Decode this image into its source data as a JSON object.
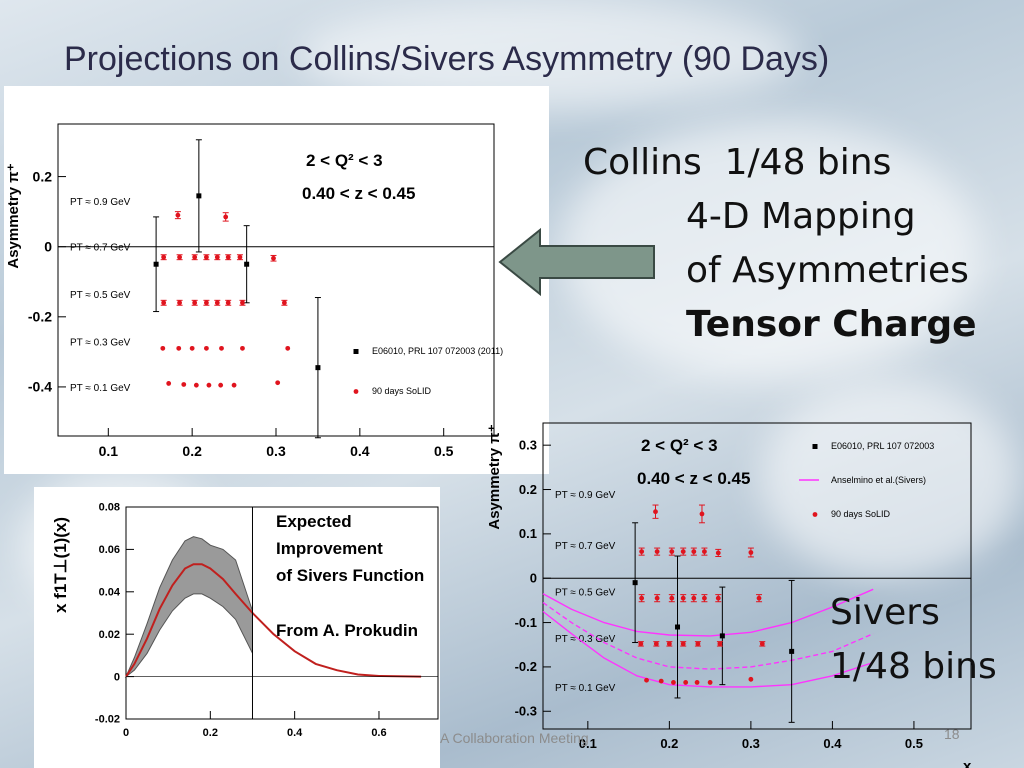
{
  "slide": {
    "title": "Projections on Collins/Sivers Asymmetry (90 Days)",
    "collins_line1": "Collins  1/48 bins",
    "collins_line2": "4-D Mapping",
    "collins_line3": "of Asymmetries",
    "collins_line4": "Tensor Charge",
    "sivers_line1": "Sivers",
    "sivers_line2": "1/48 bins",
    "footer_text": "A Collaboration Meeting",
    "page_number": "18",
    "arrow_color": "#7e968a"
  },
  "chart_data": [
    {
      "type": "scatter",
      "name": "collins",
      "ylabel": "Asymmetry π⁺",
      "xlabel": "",
      "xlim": [
        0.04,
        0.56
      ],
      "ylim": [
        -0.54,
        0.35
      ],
      "xticks": [
        "0.1",
        "0.2",
        "0.3",
        "0.4",
        "0.5"
      ],
      "yticks": [
        "0.2",
        "0",
        "-0.2",
        "-0.4"
      ],
      "annotations": [
        "2 < Q² < 3",
        "0.40 < z < 0.45"
      ],
      "pt_labels": [
        {
          "label": "PT ≈ 0.9 GeV",
          "y": 0.13
        },
        {
          "label": "PT ≈ 0.7 GeV",
          "y": 0.0
        },
        {
          "label": "PT ≈ 0.5 GeV",
          "y": -0.135
        },
        {
          "label": "PT ≈ 0.3 GeV",
          "y": -0.27
        },
        {
          "label": "PT ≈ 0.1 GeV",
          "y": -0.4
        }
      ],
      "legend": [
        {
          "name": "E06010, PRL 107 072003 (2011)",
          "marker": "square",
          "color": "#000000"
        },
        {
          "name": "90 days SoLID",
          "marker": "circle",
          "color": "#e0141e"
        }
      ],
      "series": [
        {
          "name": "E06010",
          "color": "#000000",
          "points": [
            {
              "x": 0.157,
              "y": -0.05,
              "err": 0.135
            },
            {
              "x": 0.208,
              "y": 0.145,
              "err": 0.16
            },
            {
              "x": 0.265,
              "y": -0.05,
              "err": 0.11
            },
            {
              "x": 0.35,
              "y": -0.345,
              "err": 0.2
            }
          ]
        },
        {
          "name": "90 days SoLID",
          "color": "#e0141e",
          "points": [
            {
              "x": 0.183,
              "y": 0.09,
              "err": 0.01
            },
            {
              "x": 0.24,
              "y": 0.085,
              "err": 0.012
            },
            {
              "x": 0.166,
              "y": -0.03,
              "err": 0.007
            },
            {
              "x": 0.185,
              "y": -0.03,
              "err": 0.007
            },
            {
              "x": 0.203,
              "y": -0.03,
              "err": 0.007
            },
            {
              "x": 0.217,
              "y": -0.03,
              "err": 0.007
            },
            {
              "x": 0.23,
              "y": -0.03,
              "err": 0.007
            },
            {
              "x": 0.243,
              "y": -0.03,
              "err": 0.007
            },
            {
              "x": 0.257,
              "y": -0.03,
              "err": 0.007
            },
            {
              "x": 0.297,
              "y": -0.033,
              "err": 0.008
            },
            {
              "x": 0.166,
              "y": -0.16,
              "err": 0.007
            },
            {
              "x": 0.185,
              "y": -0.16,
              "err": 0.007
            },
            {
              "x": 0.203,
              "y": -0.16,
              "err": 0.007
            },
            {
              "x": 0.217,
              "y": -0.16,
              "err": 0.007
            },
            {
              "x": 0.23,
              "y": -0.16,
              "err": 0.007
            },
            {
              "x": 0.243,
              "y": -0.16,
              "err": 0.007
            },
            {
              "x": 0.26,
              "y": -0.16,
              "err": 0.007
            },
            {
              "x": 0.31,
              "y": -0.16,
              "err": 0.007
            },
            {
              "x": 0.165,
              "y": -0.29,
              "err": 0
            },
            {
              "x": 0.184,
              "y": -0.29,
              "err": 0
            },
            {
              "x": 0.2,
              "y": -0.29,
              "err": 0
            },
            {
              "x": 0.217,
              "y": -0.29,
              "err": 0
            },
            {
              "x": 0.235,
              "y": -0.29,
              "err": 0
            },
            {
              "x": 0.26,
              "y": -0.29,
              "err": 0
            },
            {
              "x": 0.314,
              "y": -0.29,
              "err": 0
            },
            {
              "x": 0.172,
              "y": -0.39,
              "err": 0
            },
            {
              "x": 0.19,
              "y": -0.393,
              "err": 0
            },
            {
              "x": 0.205,
              "y": -0.395,
              "err": 0
            },
            {
              "x": 0.22,
              "y": -0.395,
              "err": 0
            },
            {
              "x": 0.234,
              "y": -0.395,
              "err": 0
            },
            {
              "x": 0.25,
              "y": -0.395,
              "err": 0
            },
            {
              "x": 0.302,
              "y": -0.388,
              "err": 0
            }
          ]
        }
      ]
    },
    {
      "type": "area",
      "name": "sivers-function",
      "ylabel": "x f1T⊥(1)(x)",
      "xlabel": "",
      "xlim": [
        0,
        0.74
      ],
      "ylim": [
        -0.02,
        0.08
      ],
      "xticks": [
        "0",
        "0.2",
        "0.4",
        "0.6"
      ],
      "yticks": [
        "0.08",
        "0.06",
        "0.04",
        "0.02",
        "0",
        "-0.02"
      ],
      "annotations": [
        "Expected",
        "Improvement",
        " of Sivers Function",
        "From A. Prokudin"
      ],
      "divider_x": 0.3,
      "series": [
        {
          "name": "central",
          "color": "#c0201e",
          "points": [
            [
              0,
              0
            ],
            [
              0.02,
              0.006
            ],
            [
              0.05,
              0.018
            ],
            [
              0.08,
              0.032
            ],
            [
              0.11,
              0.043
            ],
            [
              0.14,
              0.051
            ],
            [
              0.16,
              0.053
            ],
            [
              0.18,
              0.053
            ],
            [
              0.2,
              0.051
            ],
            [
              0.23,
              0.046
            ],
            [
              0.26,
              0.039
            ],
            [
              0.3,
              0.03
            ],
            [
              0.35,
              0.02
            ],
            [
              0.4,
              0.012
            ],
            [
              0.45,
              0.006
            ],
            [
              0.5,
              0.003
            ],
            [
              0.55,
              0.001
            ],
            [
              0.6,
              0.0003
            ],
            [
              0.7,
              0
            ]
          ]
        },
        {
          "name": "upper",
          "color": "#7a7a7a",
          "points": [
            [
              0,
              0
            ],
            [
              0.02,
              0.009
            ],
            [
              0.05,
              0.025
            ],
            [
              0.08,
              0.042
            ],
            [
              0.11,
              0.055
            ],
            [
              0.14,
              0.064
            ],
            [
              0.16,
              0.066
            ],
            [
              0.18,
              0.065
            ],
            [
              0.2,
              0.062
            ],
            [
              0.23,
              0.06
            ],
            [
              0.26,
              0.055
            ],
            [
              0.3,
              0.031
            ]
          ]
        },
        {
          "name": "lower",
          "color": "#7a7a7a",
          "points": [
            [
              0,
              0
            ],
            [
              0.02,
              0.003
            ],
            [
              0.05,
              0.011
            ],
            [
              0.08,
              0.022
            ],
            [
              0.11,
              0.031
            ],
            [
              0.14,
              0.037
            ],
            [
              0.16,
              0.039
            ],
            [
              0.18,
              0.039
            ],
            [
              0.2,
              0.037
            ],
            [
              0.23,
              0.033
            ],
            [
              0.26,
              0.027
            ],
            [
              0.3,
              0.011
            ]
          ]
        }
      ]
    },
    {
      "type": "scatter",
      "name": "sivers",
      "ylabel": "Asymmetry π⁺",
      "xlabel": "x",
      "xlim": [
        0.045,
        0.57
      ],
      "ylim": [
        -0.34,
        0.35
      ],
      "xticks": [
        "0.1",
        "0.2",
        "0.3",
        "0.4",
        "0.5"
      ],
      "yticks": [
        "0.3",
        "0.2",
        "0.1",
        "0",
        "-0.1",
        "-0.2",
        "-0.3"
      ],
      "annotations": [
        "2 < Q² < 3",
        "0.40 < z < 0.45"
      ],
      "pt_labels": [
        {
          "label": "PT ≈ 0.9 GeV",
          "y": 0.19
        },
        {
          "label": "PT ≈ 0.7 GeV",
          "y": 0.075
        },
        {
          "label": "PT ≈ 0.5 GeV",
          "y": -0.03
        },
        {
          "label": "PT ≈ 0.3 GeV",
          "y": -0.135
        },
        {
          "label": "PT ≈ 0.1 GeV",
          "y": -0.245
        }
      ],
      "legend": [
        {
          "name": "E06010, PRL 107 072003",
          "marker": "square",
          "color": "#000000"
        },
        {
          "name": "Anselmino et al.(Sivers)",
          "marker": "line",
          "color": "#ff33ff"
        },
        {
          "name": "90 days SoLID",
          "marker": "circle",
          "color": "#e0141e"
        }
      ],
      "series": [
        {
          "name": "E06010",
          "color": "#000000",
          "points": [
            {
              "x": 0.158,
              "y": -0.01,
              "err": 0.135
            },
            {
              "x": 0.21,
              "y": -0.11,
              "err": 0.16
            },
            {
              "x": 0.265,
              "y": -0.13,
              "err": 0.11
            },
            {
              "x": 0.35,
              "y": -0.165,
              "err": 0.16
            }
          ]
        },
        {
          "name": "90 days SoLID",
          "color": "#e0141e",
          "points": [
            {
              "x": 0.183,
              "y": 0.15,
              "err": 0.015
            },
            {
              "x": 0.24,
              "y": 0.145,
              "err": 0.02
            },
            {
              "x": 0.166,
              "y": 0.06,
              "err": 0.008
            },
            {
              "x": 0.185,
              "y": 0.06,
              "err": 0.008
            },
            {
              "x": 0.203,
              "y": 0.06,
              "err": 0.008
            },
            {
              "x": 0.217,
              "y": 0.06,
              "err": 0.008
            },
            {
              "x": 0.23,
              "y": 0.06,
              "err": 0.008
            },
            {
              "x": 0.243,
              "y": 0.06,
              "err": 0.008
            },
            {
              "x": 0.26,
              "y": 0.057,
              "err": 0.008
            },
            {
              "x": 0.3,
              "y": 0.058,
              "err": 0.01
            },
            {
              "x": 0.166,
              "y": -0.045,
              "err": 0.008
            },
            {
              "x": 0.185,
              "y": -0.045,
              "err": 0.008
            },
            {
              "x": 0.203,
              "y": -0.045,
              "err": 0.008
            },
            {
              "x": 0.217,
              "y": -0.045,
              "err": 0.008
            },
            {
              "x": 0.23,
              "y": -0.045,
              "err": 0.008
            },
            {
              "x": 0.243,
              "y": -0.045,
              "err": 0.008
            },
            {
              "x": 0.26,
              "y": -0.045,
              "err": 0.008
            },
            {
              "x": 0.31,
              "y": -0.045,
              "err": 0.008
            },
            {
              "x": 0.165,
              "y": -0.148,
              "err": 0.005
            },
            {
              "x": 0.184,
              "y": -0.148,
              "err": 0.005
            },
            {
              "x": 0.2,
              "y": -0.148,
              "err": 0.005
            },
            {
              "x": 0.217,
              "y": -0.148,
              "err": 0.005
            },
            {
              "x": 0.235,
              "y": -0.148,
              "err": 0.005
            },
            {
              "x": 0.262,
              "y": -0.148,
              "err": 0.005
            },
            {
              "x": 0.314,
              "y": -0.148,
              "err": 0.005
            },
            {
              "x": 0.172,
              "y": -0.23,
              "err": 0
            },
            {
              "x": 0.19,
              "y": -0.232,
              "err": 0
            },
            {
              "x": 0.205,
              "y": -0.235,
              "err": 0
            },
            {
              "x": 0.22,
              "y": -0.235,
              "err": 0
            },
            {
              "x": 0.234,
              "y": -0.235,
              "err": 0
            },
            {
              "x": 0.25,
              "y": -0.235,
              "err": 0
            },
            {
              "x": 0.3,
              "y": -0.228,
              "err": 0
            }
          ]
        }
      ],
      "curves": [
        {
          "name": "Anselmino upper",
          "color": "#ff33ff",
          "dash": false,
          "points": [
            [
              0.045,
              -0.035
            ],
            [
              0.08,
              -0.07
            ],
            [
              0.12,
              -0.1
            ],
            [
              0.16,
              -0.12
            ],
            [
              0.2,
              -0.128
            ],
            [
              0.25,
              -0.13
            ],
            [
              0.3,
              -0.122
            ],
            [
              0.35,
              -0.1
            ],
            [
              0.4,
              -0.065
            ],
            [
              0.45,
              -0.025
            ]
          ]
        },
        {
          "name": "Anselmino central",
          "color": "#ff33ff",
          "dash": true,
          "points": [
            [
              0.045,
              -0.055
            ],
            [
              0.08,
              -0.1
            ],
            [
              0.12,
              -0.145
            ],
            [
              0.16,
              -0.18
            ],
            [
              0.2,
              -0.2
            ],
            [
              0.25,
              -0.205
            ],
            [
              0.3,
              -0.2
            ],
            [
              0.35,
              -0.185
            ],
            [
              0.4,
              -0.165
            ],
            [
              0.45,
              -0.125
            ]
          ]
        },
        {
          "name": "Anselmino lower",
          "color": "#ff33ff",
          "dash": false,
          "points": [
            [
              0.045,
              -0.075
            ],
            [
              0.08,
              -0.125
            ],
            [
              0.12,
              -0.18
            ],
            [
              0.16,
              -0.22
            ],
            [
              0.2,
              -0.24
            ],
            [
              0.25,
              -0.245
            ],
            [
              0.3,
              -0.245
            ],
            [
              0.35,
              -0.24
            ],
            [
              0.4,
              -0.22
            ],
            [
              0.45,
              -0.19
            ]
          ]
        }
      ]
    }
  ]
}
